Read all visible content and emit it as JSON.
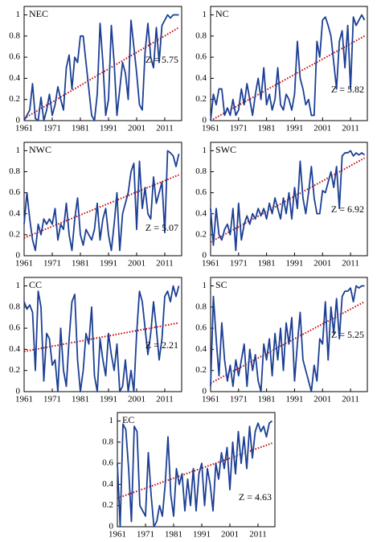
{
  "chart_data": [
    {
      "type": "line",
      "title": "NEC",
      "annotation": "Z = 5.75",
      "color": "#1c3f94",
      "x": [
        1961,
        1962,
        1963,
        1964,
        1965,
        1966,
        1967,
        1968,
        1969,
        1970,
        1971,
        1972,
        1973,
        1974,
        1975,
        1976,
        1977,
        1978,
        1979,
        1980,
        1981,
        1982,
        1983,
        1984,
        1985,
        1986,
        1987,
        1988,
        1989,
        1990,
        1991,
        1992,
        1993,
        1994,
        1995,
        1996,
        1997,
        1998,
        1999,
        2000,
        2001,
        2002,
        2003,
        2004,
        2005,
        2006,
        2007,
        2008,
        2009,
        2010,
        2011,
        2012,
        2013,
        2014,
        2015,
        2016
      ],
      "values": [
        0.0,
        0.05,
        0.1,
        0.35,
        0.02,
        0.0,
        0.22,
        0.0,
        0.1,
        0.25,
        0.05,
        0.15,
        0.32,
        0.2,
        0.1,
        0.5,
        0.62,
        0.3,
        0.6,
        0.55,
        0.8,
        0.8,
        0.55,
        0.3,
        0.05,
        0.0,
        0.25,
        0.92,
        0.55,
        0.05,
        0.2,
        0.9,
        0.55,
        0.05,
        0.3,
        0.55,
        0.45,
        0.2,
        0.95,
        0.7,
        0.45,
        0.15,
        0.1,
        0.65,
        0.92,
        0.6,
        0.5,
        0.88,
        0.55,
        0.9,
        0.95,
        1.0,
        0.97,
        1.0,
        1.0,
        1.0
      ],
      "trend": {
        "color": "#cc0000",
        "x": [
          1961,
          2016
        ],
        "values": [
          0.02,
          0.88
        ]
      },
      "xlim": [
        1961,
        2017
      ],
      "xticks": [
        1961,
        1971,
        1981,
        1991,
        2001,
        2011
      ],
      "ylim": [
        0,
        1.08
      ],
      "yticks": [
        0,
        0.2,
        0.4,
        0.6,
        0.8,
        1
      ]
    },
    {
      "type": "line",
      "title": "NC",
      "annotation": "Z = 5.82",
      "color": "#1c3f94",
      "x": [
        1961,
        1962,
        1963,
        1964,
        1965,
        1966,
        1967,
        1968,
        1969,
        1970,
        1971,
        1972,
        1973,
        1974,
        1975,
        1976,
        1977,
        1978,
        1979,
        1980,
        1981,
        1982,
        1983,
        1984,
        1985,
        1986,
        1987,
        1988,
        1989,
        1990,
        1991,
        1992,
        1993,
        1994,
        1995,
        1996,
        1997,
        1998,
        1999,
        2000,
        2001,
        2002,
        2003,
        2004,
        2005,
        2006,
        2007,
        2008,
        2009,
        2010,
        2011,
        2012,
        2013,
        2014,
        2015,
        2016
      ],
      "values": [
        0.0,
        0.25,
        0.15,
        0.3,
        0.3,
        0.05,
        0.12,
        0.05,
        0.2,
        0.05,
        0.1,
        0.3,
        0.15,
        0.35,
        0.2,
        0.05,
        0.25,
        0.4,
        0.2,
        0.5,
        0.15,
        0.25,
        0.1,
        0.2,
        0.5,
        0.15,
        0.1,
        0.25,
        0.2,
        0.1,
        0.25,
        0.75,
        0.4,
        0.3,
        0.15,
        0.2,
        0.05,
        0.05,
        0.75,
        0.6,
        0.95,
        0.98,
        0.9,
        0.8,
        0.55,
        0.3,
        0.75,
        0.85,
        0.5,
        0.9,
        0.3,
        0.98,
        0.9,
        0.95,
        1.0,
        0.95
      ],
      "trend": {
        "color": "#cc0000",
        "x": [
          1961,
          2016
        ],
        "values": [
          0.0,
          0.8
        ]
      },
      "xlim": [
        1961,
        2017
      ],
      "xticks": [
        1961,
        1971,
        1981,
        1991,
        2001,
        2011
      ],
      "ylim": [
        0,
        1.08
      ],
      "yticks": [
        0,
        0.2,
        0.4,
        0.6,
        0.8,
        1
      ]
    },
    {
      "type": "line",
      "title": "NWC",
      "annotation": "Z = 5.07",
      "color": "#1c3f94",
      "x": [
        1961,
        1962,
        1963,
        1964,
        1965,
        1966,
        1967,
        1968,
        1969,
        1970,
        1971,
        1972,
        1973,
        1974,
        1975,
        1976,
        1977,
        1978,
        1979,
        1980,
        1981,
        1982,
        1983,
        1984,
        1985,
        1986,
        1987,
        1988,
        1989,
        1990,
        1991,
        1992,
        1993,
        1994,
        1995,
        1996,
        1997,
        1998,
        1999,
        2000,
        2001,
        2002,
        2003,
        2004,
        2005,
        2006,
        2007,
        2008,
        2009,
        2010,
        2011,
        2012,
        2013,
        2014,
        2015,
        2016
      ],
      "values": [
        0.3,
        0.6,
        0.35,
        0.15,
        0.05,
        0.3,
        0.2,
        0.35,
        0.3,
        0.35,
        0.3,
        0.45,
        0.15,
        0.3,
        0.25,
        0.5,
        0.2,
        0.05,
        0.35,
        0.55,
        0.2,
        0.1,
        0.25,
        0.2,
        0.15,
        0.25,
        0.5,
        0.15,
        0.35,
        0.45,
        0.2,
        0.05,
        0.3,
        0.6,
        0.05,
        0.4,
        0.5,
        0.6,
        0.8,
        0.88,
        0.25,
        0.9,
        0.45,
        0.65,
        0.4,
        0.35,
        0.75,
        0.5,
        0.6,
        0.7,
        0.22,
        1.0,
        0.98,
        0.95,
        0.85,
        0.97
      ],
      "trend": {
        "color": "#cc0000",
        "x": [
          1961,
          2016
        ],
        "values": [
          0.17,
          0.77
        ]
      },
      "xlim": [
        1961,
        2017
      ],
      "xticks": [
        1961,
        1971,
        1981,
        1991,
        2001,
        2011
      ],
      "ylim": [
        0,
        1.08
      ],
      "yticks": [
        0,
        0.2,
        0.4,
        0.6,
        0.8,
        1
      ]
    },
    {
      "type": "line",
      "title": "SWC",
      "annotation": "Z = 6.92",
      "color": "#1c3f94",
      "x": [
        1961,
        1962,
        1963,
        1964,
        1965,
        1966,
        1967,
        1968,
        1969,
        1970,
        1971,
        1972,
        1973,
        1974,
        1975,
        1976,
        1977,
        1978,
        1979,
        1980,
        1981,
        1982,
        1983,
        1984,
        1985,
        1986,
        1987,
        1988,
        1989,
        1990,
        1991,
        1992,
        1993,
        1994,
        1995,
        1996,
        1997,
        1998,
        1999,
        2000,
        2001,
        2002,
        2003,
        2004,
        2005,
        2006,
        2007,
        2008,
        2009,
        2010,
        2011,
        2012,
        2013,
        2014,
        2015,
        2016
      ],
      "values": [
        0.45,
        0.1,
        0.45,
        0.2,
        0.15,
        0.25,
        0.3,
        0.2,
        0.45,
        0.05,
        0.5,
        0.15,
        0.3,
        0.38,
        0.3,
        0.4,
        0.35,
        0.45,
        0.38,
        0.45,
        0.35,
        0.5,
        0.4,
        0.55,
        0.45,
        0.35,
        0.55,
        0.4,
        0.6,
        0.35,
        0.65,
        0.45,
        0.9,
        0.55,
        0.4,
        0.6,
        0.85,
        0.55,
        0.4,
        0.4,
        0.62,
        0.6,
        0.7,
        0.8,
        0.65,
        0.85,
        0.45,
        0.95,
        0.98,
        0.98,
        1.0,
        0.95,
        0.98,
        0.96,
        0.98,
        0.96
      ],
      "trend": {
        "color": "#cc0000",
        "x": [
          1961,
          2016
        ],
        "values": [
          0.13,
          0.93
        ]
      },
      "xlim": [
        1961,
        2017
      ],
      "xticks": [
        1961,
        1971,
        1981,
        1991,
        2001,
        2011
      ],
      "ylim": [
        0,
        1.08
      ],
      "yticks": [
        0,
        0.2,
        0.4,
        0.6,
        0.8,
        1
      ]
    },
    {
      "type": "line",
      "title": "CC",
      "annotation": "Z = 2.21",
      "color": "#1c3f94",
      "x": [
        1961,
        1962,
        1963,
        1964,
        1965,
        1966,
        1967,
        1968,
        1969,
        1970,
        1971,
        1972,
        1973,
        1974,
        1975,
        1976,
        1977,
        1978,
        1979,
        1980,
        1981,
        1982,
        1983,
        1984,
        1985,
        1986,
        1987,
        1988,
        1989,
        1990,
        1991,
        1992,
        1993,
        1994,
        1995,
        1996,
        1997,
        1998,
        1999,
        2000,
        2001,
        2002,
        2003,
        2004,
        2005,
        2006,
        2007,
        2008,
        2009,
        2010,
        2011,
        2012,
        2013,
        2014,
        2015,
        2016
      ],
      "values": [
        0.85,
        0.78,
        0.82,
        0.75,
        0.2,
        0.95,
        0.8,
        0.1,
        0.55,
        0.5,
        0.25,
        0.3,
        0.0,
        0.6,
        0.2,
        0.05,
        0.5,
        0.85,
        0.92,
        0.3,
        0.0,
        0.2,
        0.55,
        0.45,
        0.8,
        0.15,
        0.0,
        0.5,
        0.3,
        0.15,
        0.55,
        0.35,
        0.2,
        0.45,
        0.0,
        0.05,
        0.3,
        0.0,
        0.2,
        0.0,
        0.55,
        0.95,
        0.85,
        0.6,
        0.35,
        0.55,
        0.85,
        0.6,
        0.3,
        0.5,
        0.9,
        0.95,
        0.85,
        1.0,
        0.9,
        1.0
      ],
      "trend": {
        "color": "#cc0000",
        "x": [
          1961,
          2016
        ],
        "values": [
          0.38,
          0.65
        ]
      },
      "xlim": [
        1961,
        2017
      ],
      "xticks": [
        1961,
        1971,
        1981,
        1991,
        2001,
        2011
      ],
      "ylim": [
        0,
        1.08
      ],
      "yticks": [
        0,
        0.2,
        0.4,
        0.6,
        0.8,
        1
      ]
    },
    {
      "type": "line",
      "title": "SC",
      "annotation": "Z = 5.25",
      "color": "#1c3f94",
      "x": [
        1961,
        1962,
        1963,
        1964,
        1965,
        1966,
        1967,
        1968,
        1969,
        1970,
        1971,
        1972,
        1973,
        1974,
        1975,
        1976,
        1977,
        1978,
        1979,
        1980,
        1981,
        1982,
        1983,
        1984,
        1985,
        1986,
        1987,
        1988,
        1989,
        1990,
        1991,
        1992,
        1993,
        1994,
        1995,
        1996,
        1997,
        1998,
        1999,
        2000,
        2001,
        2002,
        2003,
        2004,
        2005,
        2006,
        2007,
        2008,
        2009,
        2010,
        2011,
        2012,
        2013,
        2014,
        2015,
        2016
      ],
      "values": [
        0.05,
        0.9,
        0.5,
        0.15,
        0.65,
        0.3,
        0.1,
        0.25,
        0.05,
        0.3,
        0.15,
        0.3,
        0.45,
        0.05,
        0.4,
        0.2,
        0.35,
        0.1,
        0.0,
        0.45,
        0.3,
        0.5,
        0.15,
        0.55,
        0.3,
        0.6,
        0.2,
        0.65,
        0.45,
        0.7,
        0.1,
        0.45,
        0.75,
        0.3,
        0.2,
        0.1,
        0.0,
        0.25,
        0.1,
        0.5,
        0.45,
        0.85,
        0.3,
        0.8,
        0.55,
        0.88,
        0.5,
        0.9,
        0.95,
        0.95,
        0.98,
        0.85,
        1.0,
        0.98,
        1.0,
        1.0
      ],
      "trend": {
        "color": "#cc0000",
        "x": [
          1961,
          2016
        ],
        "values": [
          0.08,
          0.85
        ]
      },
      "xlim": [
        1961,
        2017
      ],
      "xticks": [
        1961,
        1971,
        1981,
        1991,
        2001,
        2011
      ],
      "ylim": [
        0,
        1.08
      ],
      "yticks": [
        0,
        0.2,
        0.4,
        0.6,
        0.8,
        1
      ]
    },
    {
      "type": "line",
      "title": "EC",
      "annotation": "Z = 4.63",
      "color": "#1c3f94",
      "x": [
        1961,
        1962,
        1963,
        1964,
        1965,
        1966,
        1967,
        1968,
        1969,
        1970,
        1971,
        1972,
        1973,
        1974,
        1975,
        1976,
        1977,
        1978,
        1979,
        1980,
        1981,
        1982,
        1983,
        1984,
        1985,
        1986,
        1987,
        1988,
        1989,
        1990,
        1991,
        1992,
        1993,
        1994,
        1995,
        1996,
        1997,
        1998,
        1999,
        2000,
        2001,
        2002,
        2003,
        2004,
        2005,
        2006,
        2007,
        2008,
        2009,
        2010,
        2011,
        2012,
        2013,
        2014,
        2015,
        2016
      ],
      "values": [
        0.6,
        0.0,
        0.97,
        0.92,
        0.55,
        0.05,
        0.95,
        0.9,
        0.2,
        0.15,
        0.1,
        0.7,
        0.3,
        0.0,
        0.05,
        0.2,
        0.1,
        0.4,
        0.85,
        0.3,
        0.1,
        0.55,
        0.4,
        0.5,
        0.15,
        0.45,
        0.2,
        0.55,
        0.15,
        0.5,
        0.6,
        0.2,
        0.55,
        0.4,
        0.15,
        0.6,
        0.45,
        0.7,
        0.55,
        0.75,
        0.35,
        0.8,
        0.5,
        0.9,
        0.6,
        0.85,
        0.55,
        0.95,
        0.65,
        0.9,
        0.98,
        0.9,
        0.95,
        0.85,
        0.98,
        1.0
      ],
      "trend": {
        "color": "#cc0000",
        "x": [
          1961,
          2016
        ],
        "values": [
          0.27,
          0.79
        ]
      },
      "xlim": [
        1961,
        2017
      ],
      "xticks": [
        1961,
        1971,
        1981,
        1991,
        2001,
        2011
      ],
      "ylim": [
        0,
        1.08
      ],
      "yticks": [
        0,
        0.2,
        0.4,
        0.6,
        0.8,
        1
      ]
    }
  ]
}
